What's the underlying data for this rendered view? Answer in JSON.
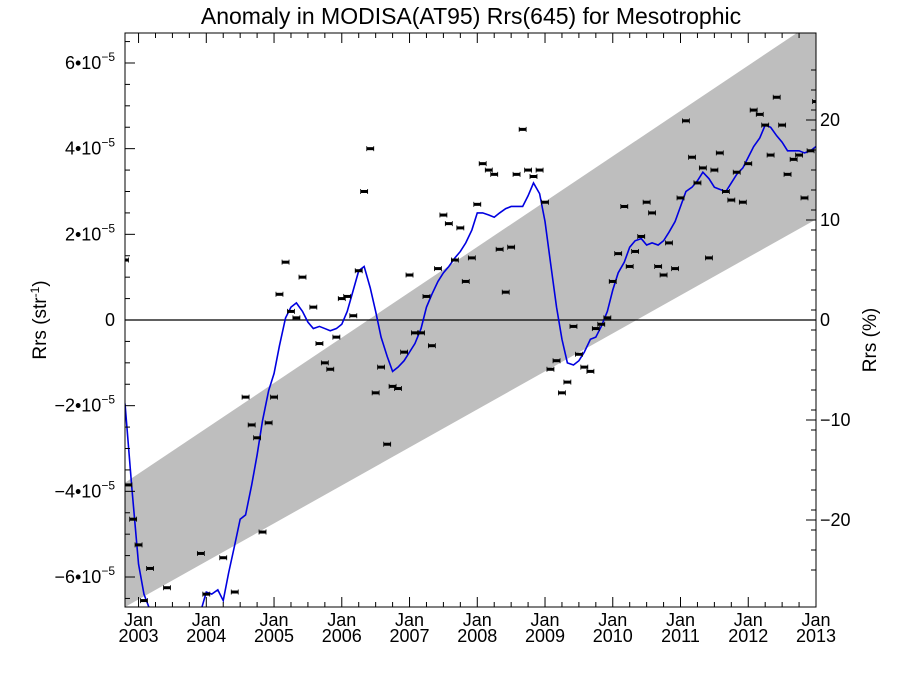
{
  "chart_data": {
    "type": "scatter",
    "title": "Anomaly in MODISA(AT95) Rrs(645) for Mesotrophic",
    "ylabel": "Rrs (str",
    "ylabel_sup": "-1",
    "ylabel_close": ")",
    "y2label": "Rrs (%)",
    "xlim": [
      2002.8,
      2013.0
    ],
    "ylim": [
      -6.7e-05,
      6.7e-05
    ],
    "y2lim": [
      -28.7,
      28.7
    ],
    "grid": false,
    "y_ticks": [
      {
        "value": 6e-05,
        "mant": "6•10",
        "exp": "−5"
      },
      {
        "value": 4e-05,
        "mant": "4•10",
        "exp": "−5"
      },
      {
        "value": 2e-05,
        "mant": "2•10",
        "exp": "−5"
      },
      {
        "value": 0,
        "mant": "0",
        "exp": ""
      },
      {
        "value": -2e-05,
        "mant": "−2•10",
        "exp": "−5"
      },
      {
        "value": -4e-05,
        "mant": "−4•10",
        "exp": "−5"
      },
      {
        "value": -6e-05,
        "mant": "−6•10",
        "exp": "−5"
      }
    ],
    "y2_ticks": [
      {
        "value": 20,
        "label": "20"
      },
      {
        "value": 10,
        "label": "10"
      },
      {
        "value": 0,
        "label": "0"
      },
      {
        "value": -10,
        "label": "−10"
      },
      {
        "value": -20,
        "label": "−20"
      }
    ],
    "x_ticks": [
      {
        "value": 2003,
        "month": "Jan",
        "year": "2003"
      },
      {
        "value": 2004,
        "month": "Jan",
        "year": "2004"
      },
      {
        "value": 2005,
        "month": "Jan",
        "year": "2005"
      },
      {
        "value": 2006,
        "month": "Jan",
        "year": "2006"
      },
      {
        "value": 2007,
        "month": "Jan",
        "year": "2007"
      },
      {
        "value": 2008,
        "month": "Jan",
        "year": "2008"
      },
      {
        "value": 2009,
        "month": "Jan",
        "year": "2009"
      },
      {
        "value": 2010,
        "month": "Jan",
        "year": "2010"
      },
      {
        "value": 2011,
        "month": "Jan",
        "year": "2011"
      },
      {
        "value": 2012,
        "month": "Jan",
        "year": "2012"
      },
      {
        "value": 2013,
        "month": "Jan",
        "year": "2013"
      }
    ],
    "band": {
      "color": "#bebebe",
      "upper": [
        [
          2002.8,
          -3.8e-05
        ],
        [
          2013.0,
          7e-05
        ]
      ],
      "lower": [
        [
          2002.8,
          -6.7e-05
        ],
        [
          2013.0,
          2.35e-05
        ]
      ]
    },
    "zero_line": 0,
    "series": [
      {
        "type": "points",
        "color": "#000000",
        "points": [
          [
            2002.8,
            1.4e-05
          ],
          [
            2002.85,
            -3.85e-05
          ],
          [
            2002.92,
            -4.65e-05
          ],
          [
            2003.0,
            -5.25e-05
          ],
          [
            2003.08,
            -6.55e-05
          ],
          [
            2003.17,
            -5.8e-05
          ],
          [
            2003.42,
            -6.25e-05
          ],
          [
            2003.92,
            -5.45e-05
          ],
          [
            2004.0,
            -6.4e-05
          ],
          [
            2004.25,
            -5.55e-05
          ],
          [
            2004.42,
            -6.35e-05
          ],
          [
            2004.58,
            -1.8e-05
          ],
          [
            2004.67,
            -2.45e-05
          ],
          [
            2004.75,
            -2.75e-05
          ],
          [
            2004.83,
            -4.95e-05
          ],
          [
            2004.92,
            -2.4e-05
          ],
          [
            2005.0,
            -1.8e-05
          ],
          [
            2005.08,
            6e-06
          ],
          [
            2005.17,
            1.35e-05
          ],
          [
            2005.25,
            2e-06
          ],
          [
            2005.33,
            5e-07
          ],
          [
            2005.42,
            1e-05
          ],
          [
            2005.58,
            3e-06
          ],
          [
            2005.67,
            -5.5e-06
          ],
          [
            2005.75,
            -1e-05
          ],
          [
            2005.83,
            -1.15e-05
          ],
          [
            2005.92,
            -4e-06
          ],
          [
            2006.0,
            5e-06
          ],
          [
            2006.08,
            5.5e-06
          ],
          [
            2006.17,
            1e-06
          ],
          [
            2006.25,
            1.15e-05
          ],
          [
            2006.33,
            3e-05
          ],
          [
            2006.42,
            4e-05
          ],
          [
            2006.5,
            -1.7e-05
          ],
          [
            2006.58,
            -1.1e-05
          ],
          [
            2006.67,
            -2.9e-05
          ],
          [
            2006.75,
            -1.55e-05
          ],
          [
            2006.83,
            -1.6e-05
          ],
          [
            2006.92,
            -7.5e-06
          ],
          [
            2007.0,
            1.05e-05
          ],
          [
            2007.08,
            -3e-06
          ],
          [
            2007.17,
            -3e-06
          ],
          [
            2007.25,
            5.5e-06
          ],
          [
            2007.33,
            -6e-06
          ],
          [
            2007.42,
            1.2e-05
          ],
          [
            2007.5,
            2.45e-05
          ],
          [
            2007.58,
            2.25e-05
          ],
          [
            2007.67,
            1.4e-05
          ],
          [
            2007.75,
            2.15e-05
          ],
          [
            2007.83,
            9e-06
          ],
          [
            2007.92,
            1.45e-05
          ],
          [
            2008.0,
            2.7e-05
          ],
          [
            2008.08,
            3.65e-05
          ],
          [
            2008.17,
            3.5e-05
          ],
          [
            2008.25,
            3.4e-05
          ],
          [
            2008.33,
            1.65e-05
          ],
          [
            2008.42,
            6.5e-06
          ],
          [
            2008.5,
            1.7e-05
          ],
          [
            2008.58,
            3.4e-05
          ],
          [
            2008.67,
            4.45e-05
          ],
          [
            2008.75,
            3.5e-05
          ],
          [
            2008.83,
            3.35e-05
          ],
          [
            2008.92,
            3.5e-05
          ],
          [
            2009.0,
            2.75e-05
          ],
          [
            2009.08,
            -1.15e-05
          ],
          [
            2009.17,
            -9.5e-06
          ],
          [
            2009.25,
            -1.7e-05
          ],
          [
            2009.33,
            -1.45e-05
          ],
          [
            2009.42,
            -1.5e-06
          ],
          [
            2009.5,
            -8e-06
          ],
          [
            2009.58,
            -1.1e-05
          ],
          [
            2009.67,
            -1.2e-05
          ],
          [
            2009.75,
            -2e-06
          ],
          [
            2009.83,
            -1e-06
          ],
          [
            2009.92,
            5e-07
          ],
          [
            2010.0,
            9e-06
          ],
          [
            2010.08,
            1.55e-05
          ],
          [
            2010.17,
            2.65e-05
          ],
          [
            2010.25,
            1.25e-05
          ],
          [
            2010.33,
            1.6e-05
          ],
          [
            2010.42,
            1.95e-05
          ],
          [
            2010.5,
            2.75e-05
          ],
          [
            2010.58,
            2.5e-05
          ],
          [
            2010.67,
            1.25e-05
          ],
          [
            2010.75,
            1.05e-05
          ],
          [
            2010.83,
            1.8e-05
          ],
          [
            2010.92,
            1.2e-05
          ],
          [
            2011.0,
            2.85e-05
          ],
          [
            2011.08,
            4.65e-05
          ],
          [
            2011.17,
            3.8e-05
          ],
          [
            2011.25,
            3.2e-05
          ],
          [
            2011.33,
            3.55e-05
          ],
          [
            2011.42,
            1.45e-05
          ],
          [
            2011.5,
            3.5e-05
          ],
          [
            2011.58,
            3.9e-05
          ],
          [
            2011.67,
            3e-05
          ],
          [
            2011.75,
            2.8e-05
          ],
          [
            2011.83,
            3.45e-05
          ],
          [
            2011.92,
            2.75e-05
          ],
          [
            2012.0,
            3.65e-05
          ],
          [
            2012.08,
            4.9e-05
          ],
          [
            2012.17,
            4.8e-05
          ],
          [
            2012.25,
            4.55e-05
          ],
          [
            2012.33,
            3.85e-05
          ],
          [
            2012.42,
            5.2e-05
          ],
          [
            2012.5,
            4.55e-05
          ],
          [
            2012.58,
            3.4e-05
          ],
          [
            2012.67,
            3.75e-05
          ],
          [
            2012.75,
            3.85e-05
          ],
          [
            2012.83,
            2.85e-05
          ],
          [
            2012.92,
            3.95e-05
          ],
          [
            2013.0,
            5.1e-05
          ]
        ]
      },
      {
        "type": "line",
        "color": "#0000e0",
        "points": [
          [
            2002.8,
            -1.95e-05
          ],
          [
            2002.9,
            -3.9e-05
          ],
          [
            2003.0,
            -5.7e-05
          ],
          [
            2003.08,
            -6.4e-05
          ],
          [
            2003.2,
            -6.9e-05
          ],
          [
            2003.9,
            -6.9e-05
          ],
          [
            2004.0,
            -6.35e-05
          ],
          [
            2004.08,
            -6.4e-05
          ],
          [
            2004.17,
            -6.3e-05
          ],
          [
            2004.25,
            -6.55e-05
          ],
          [
            2004.33,
            -5.9e-05
          ],
          [
            2004.42,
            -5.25e-05
          ],
          [
            2004.5,
            -4.65e-05
          ],
          [
            2004.58,
            -4.55e-05
          ],
          [
            2004.67,
            -3.85e-05
          ],
          [
            2004.75,
            -3.15e-05
          ],
          [
            2004.83,
            -2.35e-05
          ],
          [
            2004.92,
            -1.65e-05
          ],
          [
            2005.0,
            -1.25e-05
          ],
          [
            2005.08,
            -6e-06
          ],
          [
            2005.17,
            5e-07
          ],
          [
            2005.25,
            3e-06
          ],
          [
            2005.33,
            4e-06
          ],
          [
            2005.42,
            2e-06
          ],
          [
            2005.5,
            -5e-07
          ],
          [
            2005.58,
            -2e-06
          ],
          [
            2005.67,
            -1.5e-06
          ],
          [
            2005.75,
            -2e-06
          ],
          [
            2005.83,
            -2.5e-06
          ],
          [
            2005.92,
            -2e-06
          ],
          [
            2006.0,
            -1e-06
          ],
          [
            2006.08,
            2e-06
          ],
          [
            2006.17,
            7e-06
          ],
          [
            2006.25,
            1.15e-05
          ],
          [
            2006.33,
            1.25e-05
          ],
          [
            2006.42,
            7.5e-06
          ],
          [
            2006.5,
            2e-06
          ],
          [
            2006.58,
            -4e-06
          ],
          [
            2006.67,
            -8.5e-06
          ],
          [
            2006.75,
            -1.2e-05
          ],
          [
            2006.83,
            -1.1e-05
          ],
          [
            2006.92,
            -9.5e-06
          ],
          [
            2007.0,
            -7.5e-06
          ],
          [
            2007.08,
            -5.5e-06
          ],
          [
            2007.17,
            -2e-06
          ],
          [
            2007.25,
            3e-06
          ],
          [
            2007.33,
            6e-06
          ],
          [
            2007.42,
            9e-06
          ],
          [
            2007.5,
            1.1e-05
          ],
          [
            2007.58,
            1.25e-05
          ],
          [
            2007.67,
            1.45e-05
          ],
          [
            2007.75,
            1.6e-05
          ],
          [
            2007.83,
            1.8e-05
          ],
          [
            2007.92,
            2.1e-05
          ],
          [
            2008.0,
            2.5e-05
          ],
          [
            2008.08,
            2.5e-05
          ],
          [
            2008.17,
            2.45e-05
          ],
          [
            2008.25,
            2.4e-05
          ],
          [
            2008.33,
            2.5e-05
          ],
          [
            2008.42,
            2.6e-05
          ],
          [
            2008.5,
            2.65e-05
          ],
          [
            2008.58,
            2.65e-05
          ],
          [
            2008.67,
            2.65e-05
          ],
          [
            2008.75,
            2.9e-05
          ],
          [
            2008.83,
            3.2e-05
          ],
          [
            2008.92,
            2.95e-05
          ],
          [
            2009.0,
            2.3e-05
          ],
          [
            2009.08,
            1.35e-05
          ],
          [
            2009.17,
            3e-06
          ],
          [
            2009.25,
            -4.5e-06
          ],
          [
            2009.33,
            -1e-05
          ],
          [
            2009.42,
            -1.05e-05
          ],
          [
            2009.5,
            -9.5e-06
          ],
          [
            2009.58,
            -7.5e-06
          ],
          [
            2009.67,
            -4.5e-06
          ],
          [
            2009.75,
            -4e-06
          ],
          [
            2009.83,
            -1.5e-06
          ],
          [
            2009.92,
            2e-06
          ],
          [
            2010.0,
            7e-06
          ],
          [
            2010.08,
            1.1e-05
          ],
          [
            2010.17,
            1.35e-05
          ],
          [
            2010.25,
            1.7e-05
          ],
          [
            2010.33,
            1.85e-05
          ],
          [
            2010.42,
            1.9e-05
          ],
          [
            2010.5,
            1.75e-05
          ],
          [
            2010.58,
            1.8e-05
          ],
          [
            2010.67,
            1.75e-05
          ],
          [
            2010.75,
            1.85e-05
          ],
          [
            2010.83,
            2.05e-05
          ],
          [
            2010.92,
            2.3e-05
          ],
          [
            2011.0,
            2.65e-05
          ],
          [
            2011.08,
            3e-05
          ],
          [
            2011.17,
            3.1e-05
          ],
          [
            2011.25,
            3.25e-05
          ],
          [
            2011.33,
            3.45e-05
          ],
          [
            2011.42,
            3.3e-05
          ],
          [
            2011.5,
            3.1e-05
          ],
          [
            2011.58,
            3.05e-05
          ],
          [
            2011.67,
            3e-05
          ],
          [
            2011.75,
            3.2e-05
          ],
          [
            2011.83,
            3.4e-05
          ],
          [
            2011.92,
            3.55e-05
          ],
          [
            2012.0,
            3.8e-05
          ],
          [
            2012.08,
            4.05e-05
          ],
          [
            2012.17,
            4.25e-05
          ],
          [
            2012.25,
            4.55e-05
          ],
          [
            2012.33,
            4.5e-05
          ],
          [
            2012.42,
            4.3e-05
          ],
          [
            2012.5,
            4.15e-05
          ],
          [
            2012.58,
            3.95e-05
          ],
          [
            2012.67,
            3.95e-05
          ],
          [
            2012.75,
            3.95e-05
          ],
          [
            2012.83,
            3.9e-05
          ],
          [
            2012.92,
            3.95e-05
          ],
          [
            2013.0,
            4.05e-05
          ]
        ]
      }
    ]
  }
}
